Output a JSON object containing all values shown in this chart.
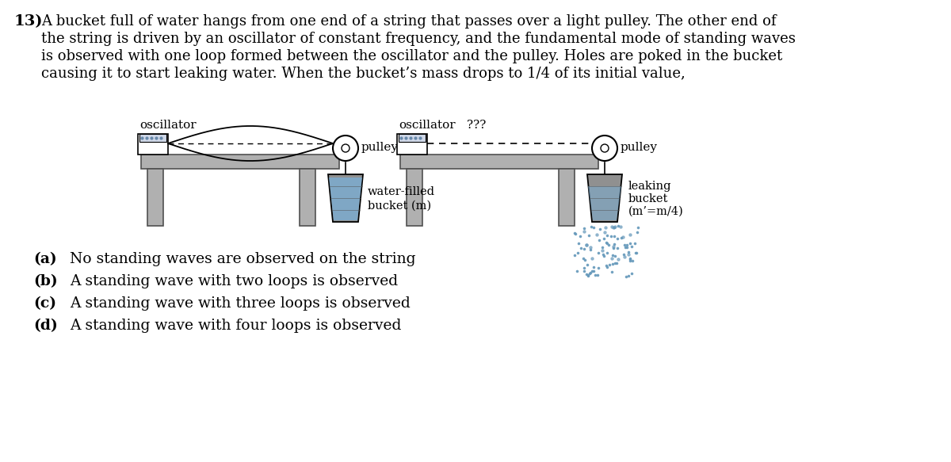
{
  "title_num": "13)",
  "text_line1": "A bucket full of water hangs from one end of a string that passes over a light pulley. The other end of",
  "text_line2": "the string is driven by an oscillator of constant frequency, and the fundamental mode of standing waves",
  "text_line3": "is observed with one loop formed between the oscillator and the pulley. Holes are poked in the bucket",
  "text_line4": "causing it to start leaking water. When the bucket’s mass drops to 1/4 of its initial value,",
  "choices_bold": [
    "(a)",
    "(b)",
    "(c)",
    "(d)"
  ],
  "choices_rest": [
    "No standing waves are observed on the string",
    "A standing wave with two loops is observed",
    "A standing wave with three loops is observed",
    "A standing wave with four loops is observed"
  ],
  "label_osc1": "oscillator",
  "label_pulley1": "pulley",
  "label_bucket1_line1": "water-filled",
  "label_bucket1_line2": "bucket (m)",
  "label_osc2": "oscillator",
  "label_qqq": "???",
  "label_pulley2": "pulley",
  "label_bucket2_line1": "leaking",
  "label_bucket2_line2": "bucket",
  "label_bucket2_line3": "(m’=m/4)",
  "bg_color": "#ffffff",
  "text_color": "#000000",
  "table_face": "#b0b0b0",
  "table_edge": "#505050",
  "osc_face": "#d0d8e8",
  "osc_edge": "#000000",
  "bucket_face": "#909090",
  "bucket_edge": "#000000",
  "water_color": "#7ab0d8",
  "drop_color": "#6699bb",
  "string_color": "#000000",
  "pulley_face": "#ffffff",
  "pulley_edge": "#000000"
}
